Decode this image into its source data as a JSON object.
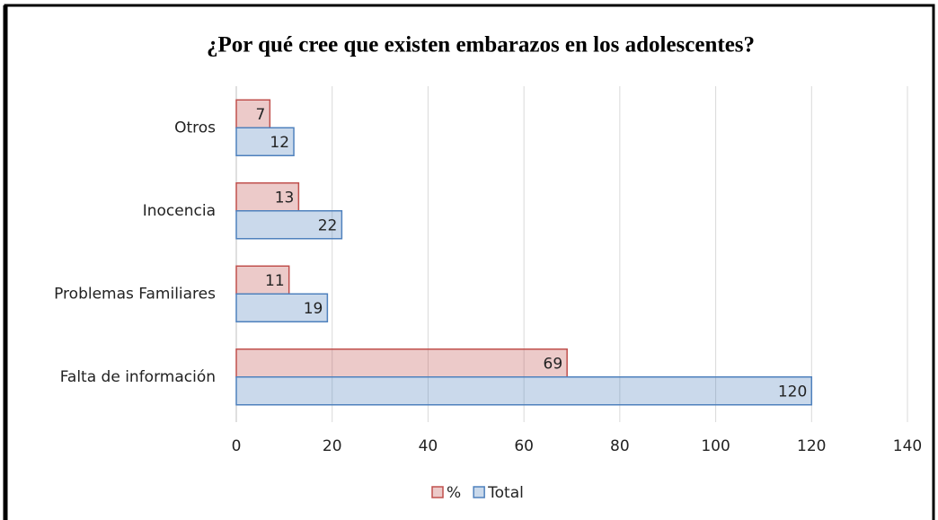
{
  "chart_data": {
    "type": "barh",
    "title": "¿Por qué cree que existen  embarazos en los adolescentes?",
    "categories": [
      "Falta de información",
      "Problemas Familiares",
      "Inocencia",
      "Otros"
    ],
    "series": [
      {
        "name": "%",
        "color": "#c0504d",
        "values": [
          69,
          11,
          13,
          7
        ]
      },
      {
        "name": "Total",
        "color": "#4f81bd",
        "values": [
          120,
          19,
          22,
          12
        ]
      }
    ],
    "xlim": [
      0,
      140
    ],
    "xticks": [
      0,
      20,
      40,
      60,
      80,
      100,
      120,
      140
    ],
    "grid": true,
    "legend": "bottom"
  }
}
